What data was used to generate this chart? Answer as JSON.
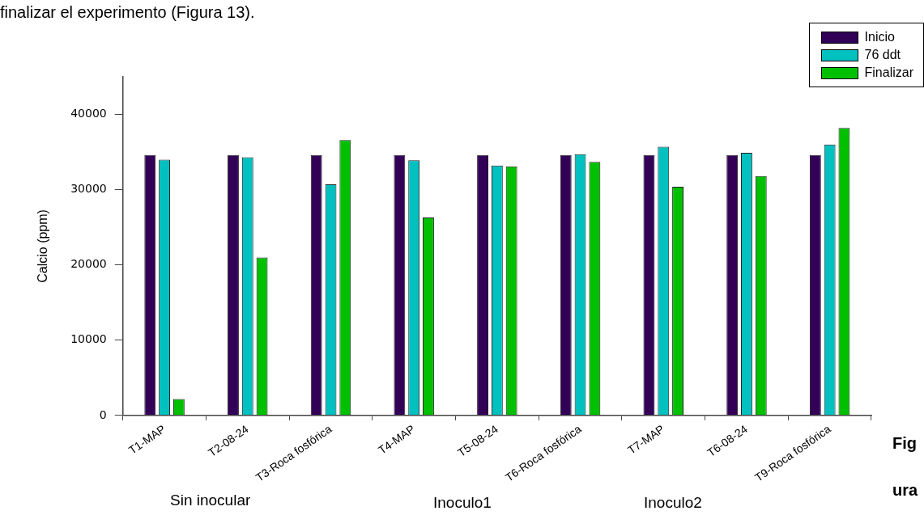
{
  "chart_data": {
    "type": "bar",
    "ylabel": "Calcio (ppm)",
    "categories": [
      "T1-MAP",
      "T2-08-24",
      "T3-Roca fosfórica",
      "T4-MAP",
      "T5-08-24",
      "T6-Roca fosfórica",
      "T7-MAP",
      "T6-08-24",
      "T9-Roca fosfórica"
    ],
    "series": [
      {
        "name": "Inicio",
        "color": "#330058",
        "values": [
          34600,
          34600,
          34600,
          34600,
          34600,
          34600,
          34600,
          34600,
          34600
        ]
      },
      {
        "name": "76 ddt",
        "color": "#00c0c0",
        "values": [
          34000,
          34300,
          30700,
          33900,
          33200,
          34700,
          35700,
          34900,
          36000
        ]
      },
      {
        "name": "Finalizar",
        "color": "#00c000",
        "values": [
          2200,
          21000,
          36600,
          26300,
          33100,
          33700,
          30400,
          31800,
          38200
        ]
      }
    ],
    "ylim": [
      0,
      45000
    ],
    "yticks": [
      0,
      10000,
      20000,
      30000,
      40000
    ],
    "grid": false,
    "legend": "top right",
    "annotations": [
      "finalizar el experimento (Figura 13).",
      "Sin inocular",
      "Inoculo1",
      "Inoculo2",
      "Fig",
      "ura"
    ]
  }
}
